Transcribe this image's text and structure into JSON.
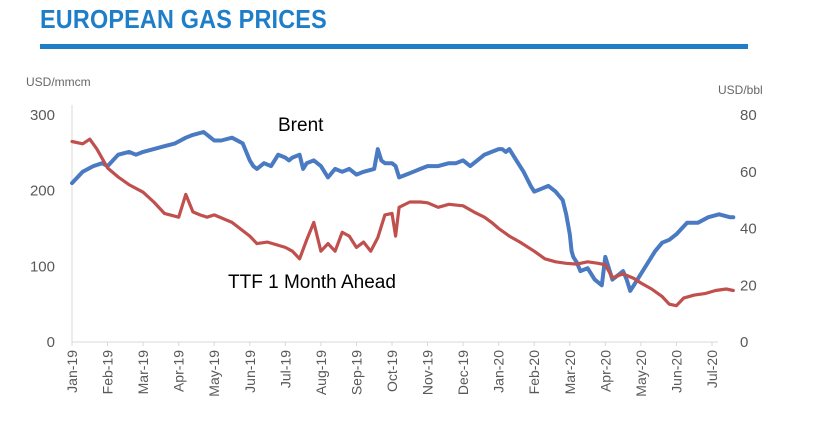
{
  "title": "EUROPEAN GAS PRICES",
  "chart_data": {
    "type": "line",
    "left_axis": {
      "unit": "USD/mmcm",
      "ticks": [
        "300",
        "200",
        "100",
        "0"
      ],
      "ylim": [
        0,
        300
      ]
    },
    "right_axis": {
      "unit": "USD/bbl",
      "ticks": [
        "80",
        "60",
        "40",
        "20",
        "0"
      ],
      "ylim": [
        0,
        80
      ]
    },
    "x_ticks": [
      "Jan-19",
      "Feb-19",
      "Mar-19",
      "Apr-19",
      "May-19",
      "Jun-19",
      "Jul-19",
      "Aug-19",
      "Sep-19",
      "Oct-19",
      "Nov-19",
      "Dec-19",
      "Jan-20",
      "Feb-20",
      "Mar-20",
      "Apr-20",
      "May-20",
      "Jun-20",
      "Jul-20"
    ],
    "annotations": {
      "brent": "Brent",
      "ttf": "TTF 1 Month Ahead"
    },
    "series": [
      {
        "name": "Brent",
        "axis": "right",
        "color": "#4a7ac2",
        "x": [
          0,
          0.3,
          0.6,
          0.85,
          1.0,
          1.3,
          1.6,
          1.8,
          2.0,
          2.3,
          2.6,
          2.9,
          3.2,
          3.4,
          3.7,
          3.9,
          4.0,
          4.2,
          4.5,
          4.8,
          5.0,
          5.1,
          5.2,
          5.4,
          5.6,
          5.8,
          6.0,
          6.1,
          6.2,
          6.4,
          6.5,
          6.6,
          6.8,
          7.0,
          7.2,
          7.4,
          7.6,
          7.8,
          8.0,
          8.2,
          8.5,
          8.6,
          8.7,
          8.8,
          9.0,
          9.1,
          9.2,
          9.4,
          9.6,
          9.8,
          10.0,
          10.3,
          10.6,
          10.8,
          11.0,
          11.2,
          11.4,
          11.6,
          11.8,
          12.0,
          12.1,
          12.2,
          12.3,
          12.5,
          12.7,
          12.9,
          13.0,
          13.2,
          13.4,
          13.6,
          13.8,
          13.9,
          14.0,
          14.05,
          14.1,
          14.2,
          14.3,
          14.5,
          14.7,
          14.9,
          15.0,
          15.2,
          15.4,
          15.5,
          15.6,
          15.7,
          15.8,
          16.0,
          16.2,
          16.4,
          16.6,
          16.8,
          17.0,
          17.3,
          17.6,
          17.9,
          18.2,
          18.5,
          18.6
        ],
        "values": [
          56,
          60,
          62,
          63,
          62,
          66,
          67,
          66,
          67,
          68,
          69,
          70,
          72,
          73,
          74,
          72,
          71,
          71,
          72,
          70,
          64,
          62,
          61,
          63,
          62,
          66,
          65,
          64,
          65,
          66,
          61,
          63,
          64,
          62,
          58,
          61,
          60,
          61,
          59,
          60,
          61,
          68,
          64,
          63,
          63,
          62,
          58,
          59,
          60,
          61,
          62,
          62,
          63,
          63,
          64,
          62,
          64,
          66,
          67,
          68,
          68,
          67,
          68,
          64,
          60,
          55,
          53,
          54,
          55,
          53,
          50,
          45,
          38,
          32,
          30,
          28,
          25,
          26,
          22,
          20,
          30,
          22,
          24,
          25,
          22,
          18,
          20,
          24,
          28,
          32,
          35,
          36,
          38,
          42,
          42,
          44,
          45,
          44,
          44
        ]
      },
      {
        "name": "TTF 1 Month Ahead",
        "axis": "left",
        "color": "#c0504d",
        "x": [
          0,
          0.3,
          0.5,
          0.7,
          1.0,
          1.3,
          1.6,
          2.0,
          2.3,
          2.6,
          3.0,
          3.2,
          3.4,
          3.6,
          3.8,
          4.0,
          4.5,
          5.0,
          5.2,
          5.5,
          6.0,
          6.2,
          6.4,
          6.6,
          6.8,
          7.0,
          7.2,
          7.4,
          7.6,
          7.8,
          8.0,
          8.2,
          8.4,
          8.6,
          8.8,
          9.0,
          9.1,
          9.2,
          9.5,
          9.8,
          10.0,
          10.3,
          10.6,
          11.0,
          11.3,
          11.6,
          11.8,
          12.0,
          12.3,
          12.6,
          13.0,
          13.3,
          13.6,
          13.9,
          14.2,
          14.5,
          14.8,
          15.0,
          15.2,
          15.5,
          15.8,
          16.0,
          16.3,
          16.6,
          16.8,
          17.0,
          17.2,
          17.5,
          17.8,
          18.1,
          18.4,
          18.6
        ],
        "values": [
          265,
          262,
          268,
          255,
          230,
          218,
          208,
          198,
          185,
          170,
          165,
          195,
          172,
          168,
          165,
          168,
          158,
          140,
          130,
          132,
          125,
          120,
          110,
          135,
          158,
          120,
          130,
          120,
          145,
          140,
          125,
          132,
          120,
          138,
          168,
          170,
          140,
          178,
          185,
          185,
          184,
          178,
          182,
          180,
          172,
          165,
          158,
          150,
          140,
          132,
          120,
          110,
          106,
          104,
          103,
          106,
          104,
          102,
          85,
          90,
          84,
          78,
          70,
          60,
          50,
          48,
          58,
          62,
          64,
          68,
          70,
          68
        ]
      }
    ]
  }
}
